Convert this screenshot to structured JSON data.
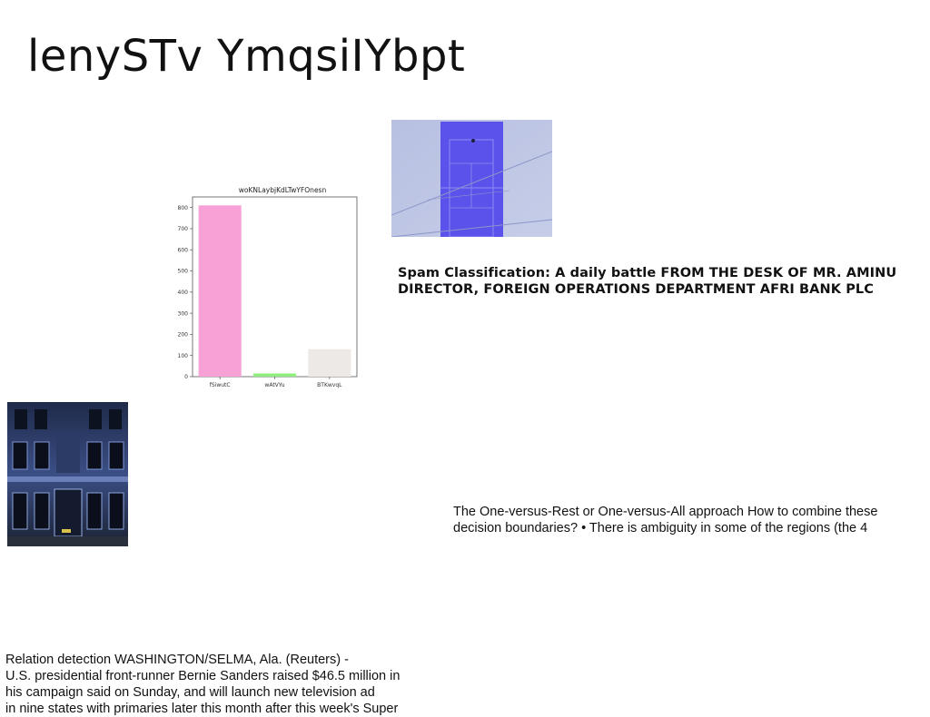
{
  "page": {
    "title": "lenySTv YmqsiIYbpt"
  },
  "chart_data": {
    "type": "bar",
    "title": "woKNLaybjKdLTwYFOnesn",
    "categories": [
      "fSiwutC",
      "wAtVYu",
      "BTKwvqL"
    ],
    "values": [
      810,
      15,
      130
    ],
    "ylim": [
      0,
      850
    ],
    "yticks": [
      0,
      100,
      200,
      300,
      400,
      500,
      600,
      700,
      800
    ],
    "colors": [
      "#f7a1d7",
      "#90ee7e",
      "#ede9e6"
    ],
    "grid": false,
    "xlabel": "",
    "ylabel": ""
  },
  "images": {
    "tennis_court": "tennis-court-aerial-photo",
    "building": "building-facade-night-photo"
  },
  "text_blocks": {
    "spam": "Spam Classification: A daily battle FROM THE DESK OF MR. AMINU DIRECTOR, FOREIGN OPERATIONS DEPARTMENT AFRI BANK PLC",
    "ovr": "The One-versus-Rest or One-versus-All approach How to combine these\ndecision boundaries? • There is ambiguity in some of the regions (the 4",
    "relation": "Relation detection WASHINGTON/SELMA, Ala. (Reuters) -\nU.S. presidential front-runner Bernie Sanders raised $46.5 million in\nhis campaign said on Sunday, and will launch new television ad\nin nine states with primaries later this month after this week's Super"
  }
}
